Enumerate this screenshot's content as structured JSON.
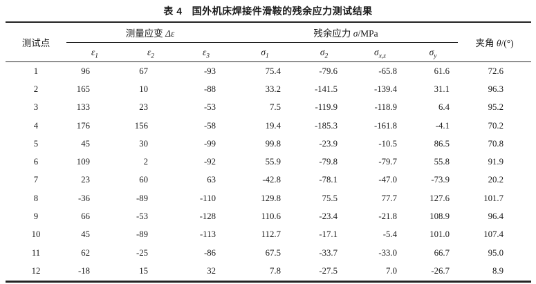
{
  "title": {
    "prefix": "表 4",
    "text": "国外机床焊接件滑鞍的残余应力测试结果"
  },
  "table": {
    "point_header": "测试点",
    "strain_group": {
      "label": "测量应变",
      "symbol": "Δε"
    },
    "stress_group": {
      "label": "残余应力",
      "symbol": "σ",
      "unit": "/MPa"
    },
    "angle_header": {
      "label": "夹角",
      "symbol": "θ",
      "unit": "/(°)"
    },
    "sub_columns": [
      {
        "base": "ε",
        "sub": "1"
      },
      {
        "base": "ε",
        "sub": "2"
      },
      {
        "base": "ε",
        "sub": "3"
      },
      {
        "base": "σ",
        "sub": "1"
      },
      {
        "base": "σ",
        "sub": "2"
      },
      {
        "base": "σ",
        "sub": "x,z"
      },
      {
        "base": "σ",
        "sub": "y"
      }
    ],
    "rows": [
      {
        "point": "1",
        "values": [
          "96",
          "67",
          "-93",
          "75.4",
          "-79.6",
          "-65.8",
          "61.6",
          "72.6"
        ]
      },
      {
        "point": "2",
        "values": [
          "165",
          "10",
          "-88",
          "33.2",
          "-141.5",
          "-139.4",
          "31.1",
          "96.3"
        ]
      },
      {
        "point": "3",
        "values": [
          "133",
          "23",
          "-53",
          "7.5",
          "-119.9",
          "-118.9",
          "6.4",
          "95.2"
        ]
      },
      {
        "point": "4",
        "values": [
          "176",
          "156",
          "-58",
          "19.4",
          "-185.3",
          "-161.8",
          "-4.1",
          "70.2"
        ]
      },
      {
        "point": "5",
        "values": [
          "45",
          "30",
          "-99",
          "99.8",
          "-23.9",
          "-10.5",
          "86.5",
          "70.8"
        ]
      },
      {
        "point": "6",
        "values": [
          "109",
          "2",
          "-92",
          "55.9",
          "-79.8",
          "-79.7",
          "55.8",
          "91.9"
        ]
      },
      {
        "point": "7",
        "values": [
          "23",
          "60",
          "63",
          "-42.8",
          "-78.1",
          "-47.0",
          "-73.9",
          "20.2"
        ]
      },
      {
        "point": "8",
        "values": [
          "-36",
          "-89",
          "-110",
          "129.8",
          "75.5",
          "77.7",
          "127.6",
          "101.7"
        ]
      },
      {
        "point": "9",
        "values": [
          "66",
          "-53",
          "-128",
          "110.6",
          "-23.4",
          "-21.8",
          "108.9",
          "96.4"
        ]
      },
      {
        "point": "10",
        "values": [
          "45",
          "-89",
          "-113",
          "112.7",
          "-17.1",
          "-5.4",
          "101.0",
          "107.4"
        ]
      },
      {
        "point": "11",
        "values": [
          "62",
          "-25",
          "-86",
          "67.5",
          "-33.7",
          "-33.0",
          "66.7",
          "95.0"
        ]
      },
      {
        "point": "12",
        "values": [
          "-18",
          "15",
          "32",
          "7.8",
          "-27.5",
          "7.0",
          "-26.7",
          "8.9"
        ]
      }
    ]
  }
}
